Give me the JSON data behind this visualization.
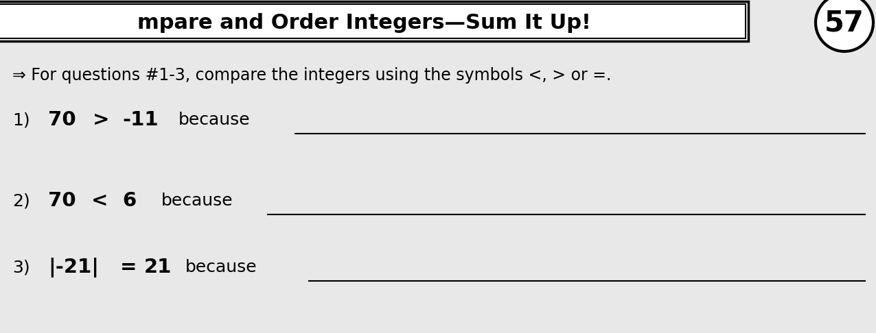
{
  "background_color": "#c8c8c8",
  "page_bg": "#e8e8e8",
  "title_box_text": "mpare and Order Integers—Sum It Up!",
  "page_number": "57",
  "instruction_text": "⇒ For questions #1-3, compare the integers using the symbols <, > or =.",
  "body_fontsize": 18,
  "bold_fontsize": 21,
  "page_num_fontsize": 30,
  "instr_fontsize": 17
}
